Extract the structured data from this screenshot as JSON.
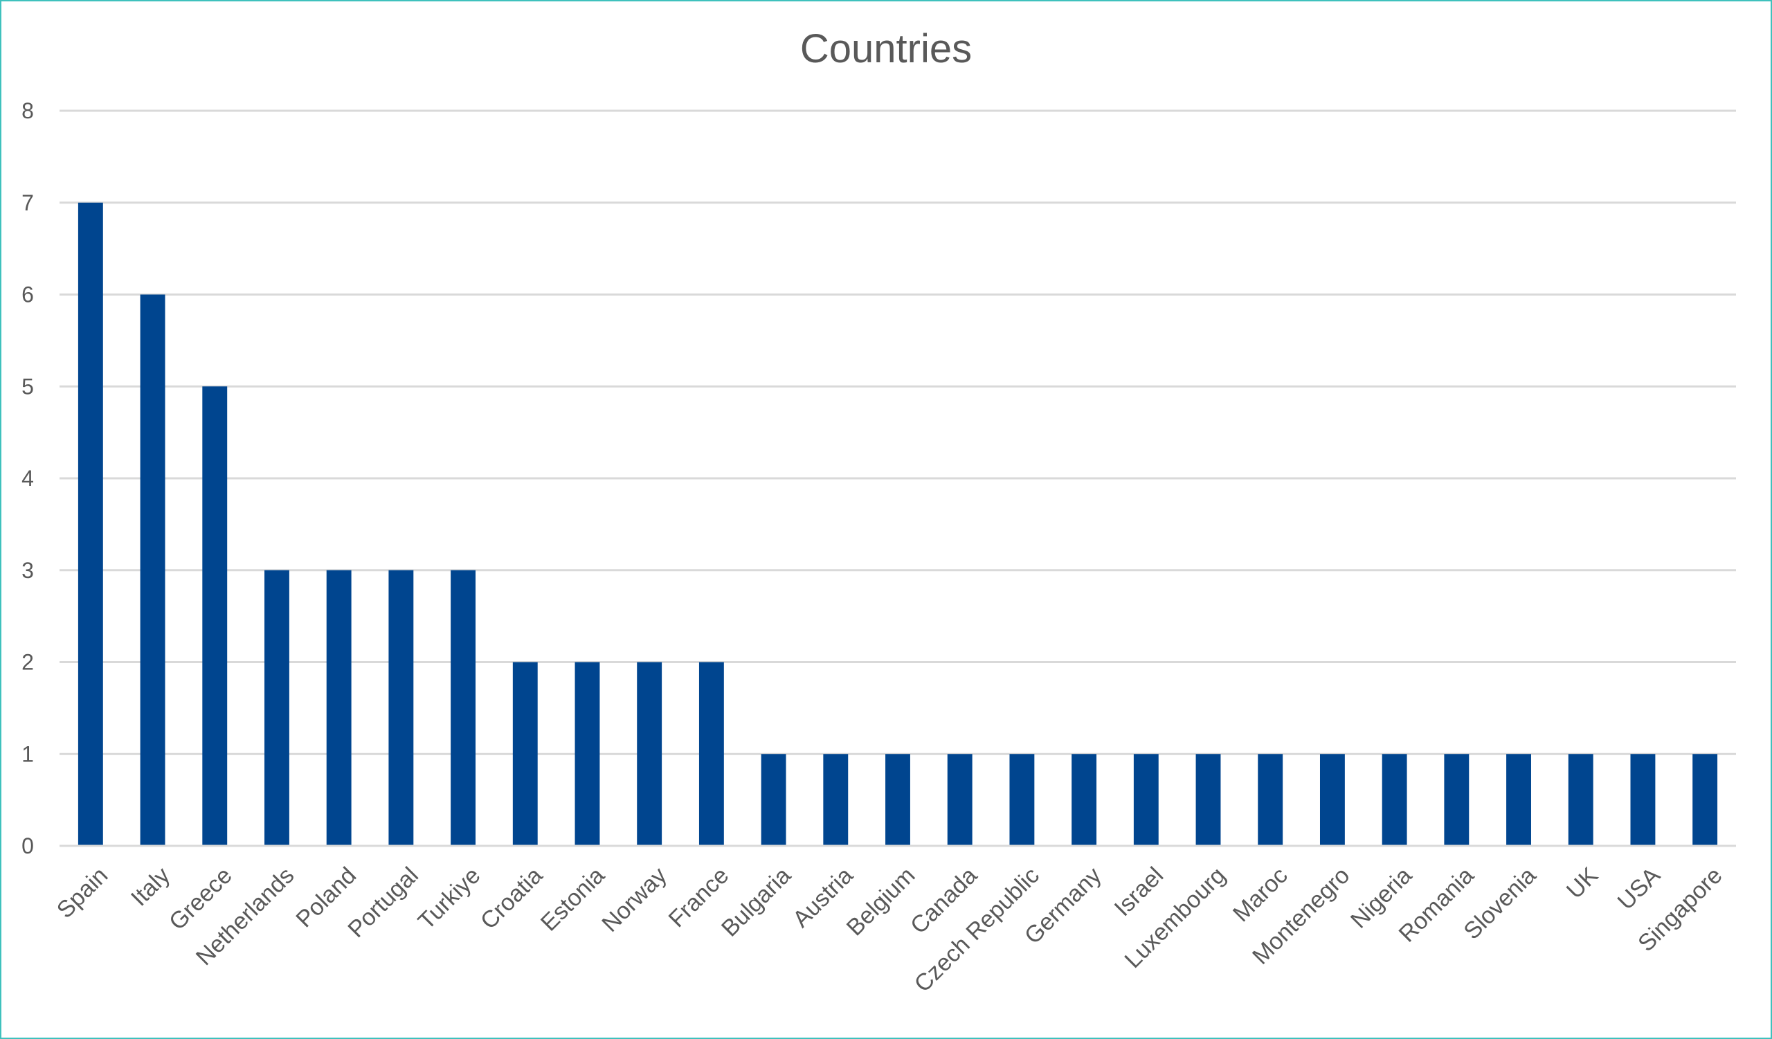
{
  "chart_data": {
    "type": "bar",
    "title": "Countries",
    "xlabel": "",
    "ylabel": "",
    "ylim": [
      0,
      8
    ],
    "yticks": [
      0,
      1,
      2,
      3,
      4,
      5,
      6,
      7,
      8
    ],
    "grid": true,
    "legend": "none",
    "bar_color": "#00458f",
    "categories": [
      "Spain",
      "Italy",
      "Greece",
      "Netherlands",
      "Poland",
      "Portugal",
      "Turkiye",
      "Croatia",
      "Estonia",
      "Norway",
      "France",
      "Bulgaria",
      "Austria",
      "Belgium",
      "Canada",
      "Czech Republic",
      "Germany",
      "Israel",
      "Luxembourg",
      "Maroc",
      "Montenegro",
      "Nigeria",
      "Romania",
      "Slovenia",
      "UK",
      "USA",
      "Singapore"
    ],
    "values": [
      7,
      6,
      5,
      3,
      3,
      3,
      3,
      2,
      2,
      2,
      2,
      1,
      1,
      1,
      1,
      1,
      1,
      1,
      1,
      1,
      1,
      1,
      1,
      1,
      1,
      1,
      1
    ]
  }
}
